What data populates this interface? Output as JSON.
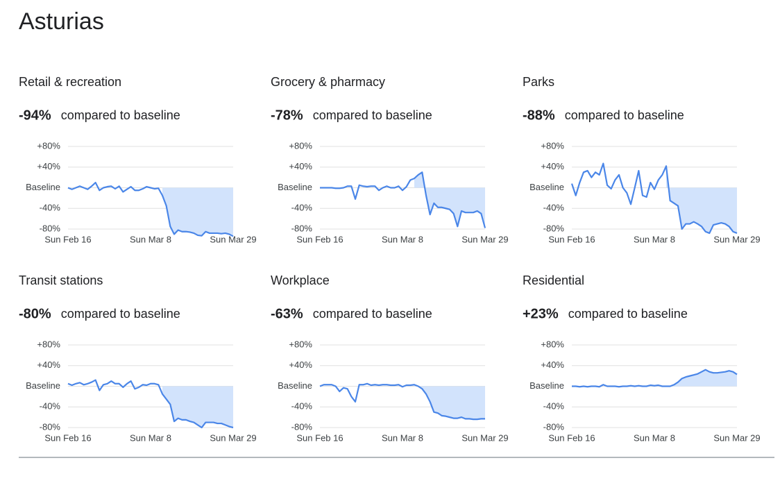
{
  "title": "Asturias",
  "chart_data": [
    {
      "type": "line",
      "title": "Retail & recreation",
      "headline": "-94%",
      "subtitle": "compared to baseline",
      "color": "#4a86e8",
      "values": [
        0,
        -3,
        0,
        3,
        0,
        -3,
        3,
        10,
        -5,
        0,
        2,
        3,
        -2,
        3,
        -8,
        -3,
        2,
        -5,
        -5,
        -2,
        2,
        0,
        -2,
        -1,
        -15,
        -35,
        -75,
        -90,
        -82,
        -85,
        -85,
        -86,
        -88,
        -92,
        -93,
        -85,
        -88,
        -88,
        -88,
        -89,
        -88,
        -90,
        -94
      ],
      "xlim": [
        0,
        42
      ],
      "xticks": [
        {
          "value": 0,
          "label": "Sun Feb 16"
        },
        {
          "value": 21,
          "label": "Sun Mar 8"
        },
        {
          "value": 42,
          "label": "Sun Mar 29"
        }
      ],
      "ylim": [
        -80,
        80
      ],
      "yticks": [
        {
          "value": 80,
          "label": "+80%"
        },
        {
          "value": 40,
          "label": "+40%"
        },
        {
          "value": 0,
          "label": "Baseline"
        },
        {
          "value": -40,
          "label": "-40%"
        },
        {
          "value": -80,
          "label": "-80%"
        }
      ],
      "grid": true
    },
    {
      "type": "line",
      "title": "Grocery & pharmacy",
      "headline": "-78%",
      "subtitle": "compared to baseline",
      "color": "#4a86e8",
      "values": [
        0,
        0,
        0,
        0,
        -1,
        -1,
        0,
        3,
        3,
        -22,
        5,
        3,
        2,
        3,
        3,
        -5,
        0,
        3,
        0,
        0,
        3,
        -5,
        2,
        15,
        18,
        25,
        30,
        -15,
        -52,
        -30,
        -38,
        -38,
        -40,
        -42,
        -50,
        -75,
        -45,
        -48,
        -48,
        -48,
        -45,
        -50,
        -78
      ],
      "xlim": [
        0,
        42
      ],
      "xticks": [
        {
          "value": 0,
          "label": "Sun Feb 16"
        },
        {
          "value": 21,
          "label": "Sun Mar 8"
        },
        {
          "value": 42,
          "label": "Sun Mar 29"
        }
      ],
      "ylim": [
        -80,
        80
      ],
      "yticks": [
        {
          "value": 80,
          "label": "+80%"
        },
        {
          "value": 40,
          "label": "+40%"
        },
        {
          "value": 0,
          "label": "Baseline"
        },
        {
          "value": -40,
          "label": "-40%"
        },
        {
          "value": -80,
          "label": "-80%"
        }
      ],
      "grid": true
    },
    {
      "type": "line",
      "title": "Parks",
      "headline": "-88%",
      "subtitle": "compared to baseline",
      "color": "#4a86e8",
      "values": [
        8,
        -15,
        10,
        30,
        33,
        20,
        30,
        25,
        47,
        5,
        -2,
        15,
        25,
        0,
        -10,
        -32,
        0,
        33,
        -15,
        -18,
        10,
        -3,
        15,
        25,
        42,
        -25,
        -30,
        -35,
        -80,
        -70,
        -70,
        -66,
        -70,
        -75,
        -85,
        -88,
        -72,
        -70,
        -68,
        -70,
        -75,
        -85,
        -88
      ],
      "xlim": [
        0,
        42
      ],
      "xticks": [
        {
          "value": 0,
          "label": "Sun Feb 16"
        },
        {
          "value": 21,
          "label": "Sun Mar 8"
        },
        {
          "value": 42,
          "label": "Sun Mar 29"
        }
      ],
      "ylim": [
        -80,
        80
      ],
      "yticks": [
        {
          "value": 80,
          "label": "+80%"
        },
        {
          "value": 40,
          "label": "+40%"
        },
        {
          "value": 0,
          "label": "Baseline"
        },
        {
          "value": -40,
          "label": "-40%"
        },
        {
          "value": -80,
          "label": "-80%"
        }
      ],
      "grid": true
    },
    {
      "type": "line",
      "title": "Transit stations",
      "headline": "-80%",
      "subtitle": "compared to baseline",
      "color": "#4a86e8",
      "values": [
        5,
        2,
        5,
        7,
        3,
        5,
        8,
        12,
        -8,
        3,
        5,
        10,
        5,
        5,
        -2,
        5,
        10,
        -5,
        -2,
        3,
        2,
        5,
        5,
        3,
        -15,
        -25,
        -35,
        -68,
        -62,
        -65,
        -65,
        -68,
        -70,
        -75,
        -80,
        -70,
        -70,
        -70,
        -72,
        -72,
        -75,
        -78,
        -80
      ],
      "xlim": [
        0,
        42
      ],
      "xticks": [
        {
          "value": 0,
          "label": "Sun Feb 16"
        },
        {
          "value": 21,
          "label": "Sun Mar 8"
        },
        {
          "value": 42,
          "label": "Sun Mar 29"
        }
      ],
      "ylim": [
        -80,
        80
      ],
      "yticks": [
        {
          "value": 80,
          "label": "+80%"
        },
        {
          "value": 40,
          "label": "+40%"
        },
        {
          "value": 0,
          "label": "Baseline"
        },
        {
          "value": -40,
          "label": "-40%"
        },
        {
          "value": -80,
          "label": "-80%"
        }
      ],
      "grid": true
    },
    {
      "type": "line",
      "title": "Workplace",
      "headline": "-63%",
      "subtitle": "compared to baseline",
      "color": "#4a86e8",
      "values": [
        0,
        3,
        3,
        3,
        0,
        -10,
        -3,
        -5,
        -20,
        -30,
        3,
        3,
        5,
        2,
        3,
        2,
        3,
        3,
        2,
        2,
        3,
        -1,
        2,
        2,
        3,
        0,
        -5,
        -15,
        -30,
        -50,
        -52,
        -57,
        -58,
        -60,
        -62,
        -62,
        -60,
        -63,
        -63,
        -64,
        -64,
        -63,
        -63
      ],
      "xlim": [
        0,
        42
      ],
      "xticks": [
        {
          "value": 0,
          "label": "Sun Feb 16"
        },
        {
          "value": 21,
          "label": "Sun Mar 8"
        },
        {
          "value": 42,
          "label": "Sun Mar 29"
        }
      ],
      "ylim": [
        -80,
        80
      ],
      "yticks": [
        {
          "value": 80,
          "label": "+80%"
        },
        {
          "value": 40,
          "label": "+40%"
        },
        {
          "value": 0,
          "label": "Baseline"
        },
        {
          "value": -40,
          "label": "-40%"
        },
        {
          "value": -80,
          "label": "-80%"
        }
      ],
      "grid": true
    },
    {
      "type": "line",
      "title": "Residential",
      "headline": "+23%",
      "subtitle": "compared to baseline",
      "color": "#4a86e8",
      "values": [
        0,
        0,
        -1,
        0,
        -1,
        0,
        0,
        -1,
        3,
        0,
        0,
        0,
        -1,
        0,
        0,
        1,
        0,
        1,
        0,
        0,
        2,
        1,
        2,
        0,
        0,
        0,
        3,
        8,
        15,
        18,
        20,
        22,
        24,
        28,
        32,
        28,
        26,
        26,
        27,
        28,
        30,
        28,
        23
      ],
      "xlim": [
        0,
        42
      ],
      "xticks": [
        {
          "value": 0,
          "label": "Sun Feb 16"
        },
        {
          "value": 21,
          "label": "Sun Mar 8"
        },
        {
          "value": 42,
          "label": "Sun Mar 29"
        }
      ],
      "ylim": [
        -80,
        80
      ],
      "yticks": [
        {
          "value": 80,
          "label": "+80%"
        },
        {
          "value": 40,
          "label": "+40%"
        },
        {
          "value": 0,
          "label": "Baseline"
        },
        {
          "value": -40,
          "label": "-40%"
        },
        {
          "value": -80,
          "label": "-80%"
        }
      ],
      "grid": true
    }
  ]
}
